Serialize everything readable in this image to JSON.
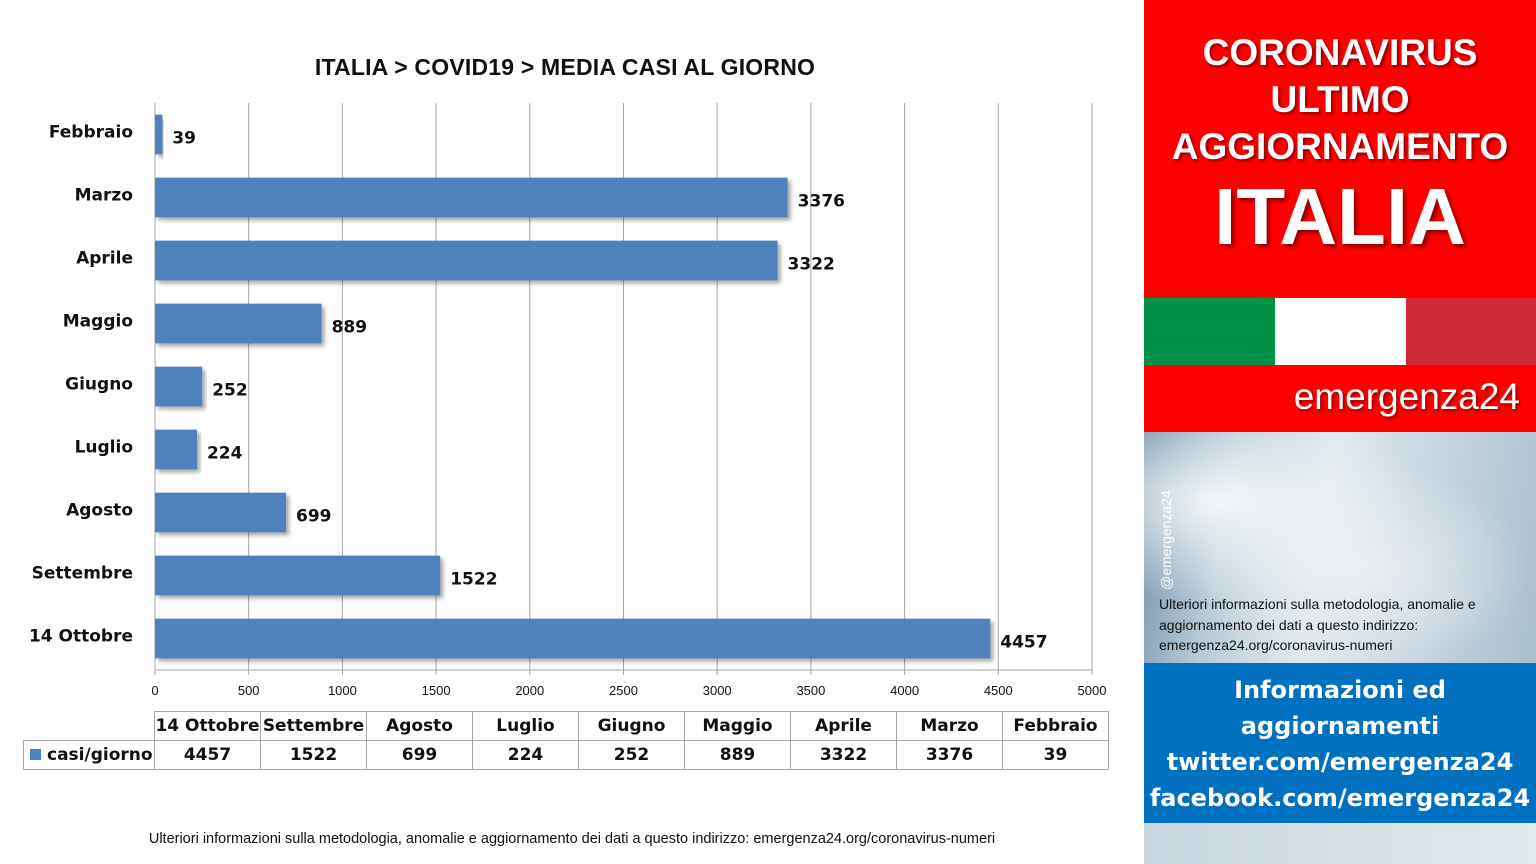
{
  "chart_data": {
    "type": "bar",
    "orientation": "horizontal",
    "title": "ITALIA >  COVID19 > MEDIA CASI AL GIORNO",
    "categories": [
      "Febbraio",
      "Marzo",
      "Aprile",
      "Maggio",
      "Giugno",
      "Luglio",
      "Agosto",
      "Settembre",
      "14 Ottobre"
    ],
    "series": [
      {
        "name": "casi/giorno",
        "values": [
          39,
          3376,
          3322,
          889,
          252,
          224,
          699,
          1522,
          4457
        ]
      }
    ],
    "xlim": [
      0,
      5000
    ],
    "x_ticks": [
      0,
      500,
      1000,
      1500,
      2000,
      2500,
      3000,
      3500,
      4000,
      4500,
      5000
    ],
    "grid": true,
    "bar_color": "#4f81bd",
    "data_table": {
      "headers": [
        "14 Ottobre",
        "Settembre",
        "Agosto",
        "Luglio",
        "Giugno",
        "Maggio",
        "Aprile",
        "Marzo",
        "Febbraio"
      ],
      "series_name": "casi/giorno",
      "values": [
        "4457",
        "1522",
        "699",
        "224",
        "252",
        "889",
        "3322",
        "3376",
        "39"
      ]
    }
  },
  "footer_note": "Ulteriori informazioni sulla metodologia, anomalie e aggiornamento dei dati a questo indirizzo: emergenza24.org/coronavirus-numeri",
  "side_panel": {
    "header_lines": [
      "CORONAVIRUS",
      "ULTIMO",
      "AGGIORNAMENTO"
    ],
    "country": "ITALIA",
    "brand": "emergenza24",
    "handle": "@emergenza24",
    "note": "Ulteriori informazioni sulla metodologia, anomalie e aggiornamento dei dati a questo indirizzo: emergenza24.org/coronavirus-numeri",
    "info_lines": [
      "Informazioni ed",
      "aggiornamenti",
      "twitter.com/emergenza24",
      "facebook.com/emergenza24"
    ],
    "colors": {
      "red": "#ff0000",
      "blue": "#0070c0",
      "flag_green": "#009246",
      "flag_white": "#ffffff",
      "flag_red": "#ce2b37"
    }
  }
}
